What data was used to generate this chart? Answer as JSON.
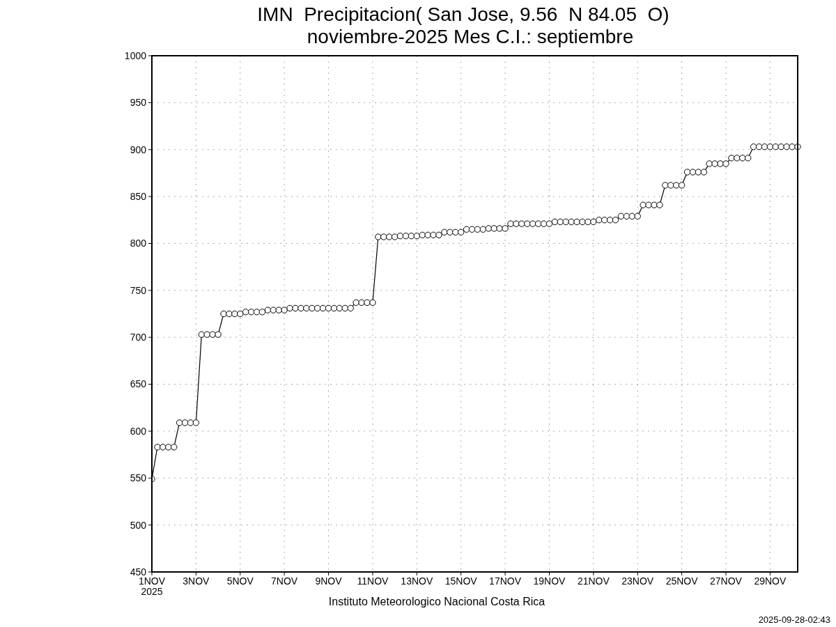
{
  "chart_data": {
    "type": "line",
    "title": "IMN  Precipitacion( San Jose, 9.56  N 84.05  O)",
    "subtitle": "noviembre-2025 Mes C.I.: septiembre",
    "annotations": [
      "Instituto Meteorologico Nacional Costa Rica",
      "2025-09-28-02:43"
    ],
    "series": [
      {
        "color": "#000000",
        "x": [
          "2025-11-01T00:00",
          "2025-11-01T06:00",
          "2025-11-01T12:00",
          "2025-11-01T18:00",
          "2025-11-02T00:00",
          "2025-11-02T06:00",
          "2025-11-02T12:00",
          "2025-11-02T18:00",
          "2025-11-03T00:00",
          "2025-11-03T06:00",
          "2025-11-03T12:00",
          "2025-11-03T18:00",
          "2025-11-04T00:00",
          "2025-11-04T06:00",
          "2025-11-04T12:00",
          "2025-11-04T18:00",
          "2025-11-05T00:00",
          "2025-11-05T06:00",
          "2025-11-05T12:00",
          "2025-11-05T18:00",
          "2025-11-06T00:00",
          "2025-11-06T06:00",
          "2025-11-06T12:00",
          "2025-11-06T18:00",
          "2025-11-07T00:00",
          "2025-11-07T06:00",
          "2025-11-07T12:00",
          "2025-11-07T18:00",
          "2025-11-08T00:00",
          "2025-11-08T06:00",
          "2025-11-08T12:00",
          "2025-11-08T18:00",
          "2025-11-09T00:00",
          "2025-11-09T06:00",
          "2025-11-09T12:00",
          "2025-11-09T18:00",
          "2025-11-10T00:00",
          "2025-11-10T06:00",
          "2025-11-10T12:00",
          "2025-11-10T18:00",
          "2025-11-11T00:00",
          "2025-11-11T06:00",
          "2025-11-11T12:00",
          "2025-11-11T18:00",
          "2025-11-12T00:00",
          "2025-11-12T06:00",
          "2025-11-12T12:00",
          "2025-11-12T18:00",
          "2025-11-13T00:00",
          "2025-11-13T06:00",
          "2025-11-13T12:00",
          "2025-11-13T18:00",
          "2025-11-14T00:00",
          "2025-11-14T06:00",
          "2025-11-14T12:00",
          "2025-11-14T18:00",
          "2025-11-15T00:00",
          "2025-11-15T06:00",
          "2025-11-15T12:00",
          "2025-11-15T18:00",
          "2025-11-16T00:00",
          "2025-11-16T06:00",
          "2025-11-16T12:00",
          "2025-11-16T18:00",
          "2025-11-17T00:00",
          "2025-11-17T06:00",
          "2025-11-17T12:00",
          "2025-11-17T18:00",
          "2025-11-18T00:00",
          "2025-11-18T06:00",
          "2025-11-18T12:00",
          "2025-11-18T18:00",
          "2025-11-19T00:00",
          "2025-11-19T06:00",
          "2025-11-19T12:00",
          "2025-11-19T18:00",
          "2025-11-20T00:00",
          "2025-11-20T06:00",
          "2025-11-20T12:00",
          "2025-11-20T18:00",
          "2025-11-21T00:00",
          "2025-11-21T06:00",
          "2025-11-21T12:00",
          "2025-11-21T18:00",
          "2025-11-22T00:00",
          "2025-11-22T06:00",
          "2025-11-22T12:00",
          "2025-11-22T18:00",
          "2025-11-23T00:00",
          "2025-11-23T06:00",
          "2025-11-23T12:00",
          "2025-11-23T18:00",
          "2025-11-24T00:00",
          "2025-11-24T06:00",
          "2025-11-24T12:00",
          "2025-11-24T18:00",
          "2025-11-25T00:00",
          "2025-11-25T06:00",
          "2025-11-25T12:00",
          "2025-11-25T18:00",
          "2025-11-26T00:00",
          "2025-11-26T06:00",
          "2025-11-26T12:00",
          "2025-11-26T18:00",
          "2025-11-27T00:00",
          "2025-11-27T06:00",
          "2025-11-27T12:00",
          "2025-11-27T18:00",
          "2025-11-28T00:00",
          "2025-11-28T06:00",
          "2025-11-28T12:00",
          "2025-11-28T18:00",
          "2025-11-29T00:00",
          "2025-11-29T06:00",
          "2025-11-29T12:00",
          "2025-11-29T18:00",
          "2025-11-30T00:00",
          "2025-11-30T06:00"
        ],
        "values": [
          549,
          583,
          583,
          583,
          583,
          609,
          609,
          609,
          609,
          703,
          703,
          703,
          703,
          725,
          725,
          725,
          725,
          727,
          727,
          727,
          727,
          729,
          729,
          729,
          729,
          731,
          731,
          731,
          731,
          731,
          731,
          731,
          731,
          731,
          731,
          731,
          731,
          737,
          737,
          737,
          737,
          807,
          807,
          807,
          807,
          808,
          808,
          808,
          808,
          809,
          809,
          809,
          809,
          812,
          812,
          812,
          812,
          815,
          815,
          815,
          815,
          816,
          816,
          816,
          816,
          821,
          821,
          821,
          821,
          821,
          821,
          821,
          821,
          823,
          823,
          823,
          823,
          823,
          823,
          823,
          823,
          825,
          825,
          825,
          825,
          829,
          829,
          829,
          829,
          841,
          841,
          841,
          841,
          862,
          862,
          862,
          862,
          876,
          876,
          876,
          876,
          885,
          885,
          885,
          885,
          891,
          891,
          891,
          891,
          903,
          903,
          903,
          903,
          903,
          903,
          903,
          903,
          903
        ]
      }
    ],
    "xlim": [
      "2025-11-01T00:00",
      "2025-11-30T06:00"
    ],
    "xticks": [
      {
        "value": "2025-11-01",
        "label": "1NOV\n2025"
      },
      {
        "value": "2025-11-03",
        "label": "3NOV"
      },
      {
        "value": "2025-11-05",
        "label": "5NOV"
      },
      {
        "value": "2025-11-07",
        "label": "7NOV"
      },
      {
        "value": "2025-11-09",
        "label": "9NOV"
      },
      {
        "value": "2025-11-11",
        "label": "11NOV"
      },
      {
        "value": "2025-11-13",
        "label": "13NOV"
      },
      {
        "value": "2025-11-15",
        "label": "15NOV"
      },
      {
        "value": "2025-11-17",
        "label": "17NOV"
      },
      {
        "value": "2025-11-19",
        "label": "19NOV"
      },
      {
        "value": "2025-11-21",
        "label": "21NOV"
      },
      {
        "value": "2025-11-23",
        "label": "23NOV"
      },
      {
        "value": "2025-11-25",
        "label": "25NOV"
      },
      {
        "value": "2025-11-27",
        "label": "27NOV"
      },
      {
        "value": "2025-11-29",
        "label": "29NOV"
      }
    ],
    "ylim": [
      450,
      1000
    ],
    "yticks": [
      450,
      500,
      550,
      600,
      650,
      700,
      750,
      800,
      850,
      900,
      950,
      1000
    ],
    "grid": true,
    "marker": "circle",
    "line_style": "solid"
  }
}
